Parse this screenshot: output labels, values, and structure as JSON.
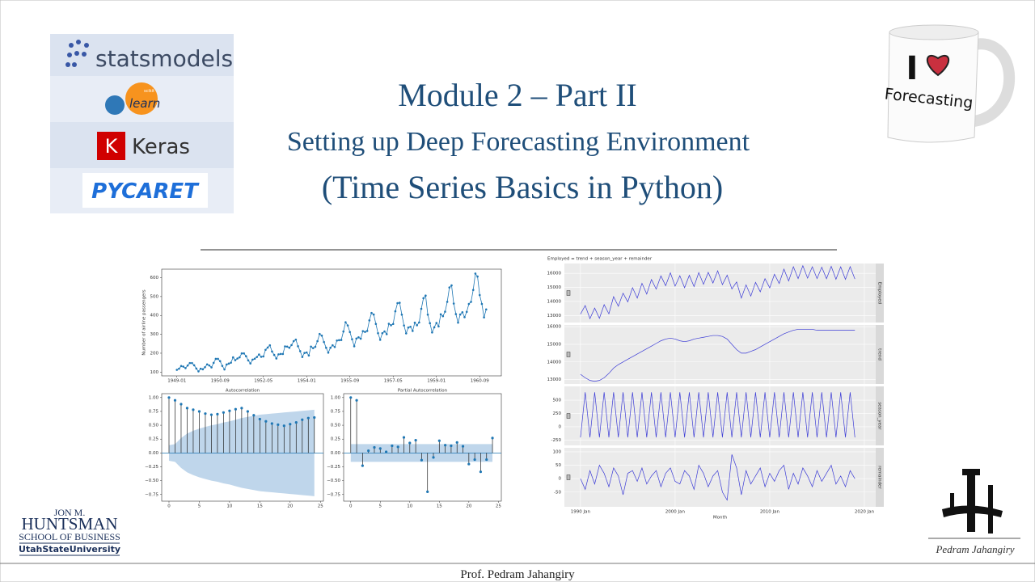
{
  "slide": {
    "title": "Module 2 – Part II",
    "subtitle": "Setting up Deep Forecasting Environment",
    "subtitle2": "(Time Series Basics in Python)",
    "logos": {
      "statsmodels": "statsmodels",
      "sklearn_small": "scikit",
      "sklearn": "learn",
      "keras_icon": "K",
      "keras": "Keras",
      "pycaret": "PYCARET"
    },
    "mug": {
      "line1": "I",
      "line2": "Forecasting"
    },
    "school": {
      "line1": "JON M.",
      "line2": "HUNTSMAN",
      "line3": "SCHOOL OF BUSINESS",
      "line4": "UtahStateUniversity"
    },
    "signature": "Pedram Jahangiry",
    "footer": "Prof. Pedram Jahangiry"
  },
  "chart_data": [
    {
      "type": "line",
      "ylabel": "Number of airline passengers",
      "color": "#1f77b4",
      "markers": true,
      "categories": [
        "1949-01",
        null,
        null,
        null,
        null,
        null,
        null,
        null,
        null,
        null,
        null,
        null,
        null,
        null,
        null,
        null,
        null,
        null,
        null,
        null,
        "1950-09",
        null,
        null,
        null,
        null,
        null,
        null,
        null,
        null,
        null,
        null,
        null,
        null,
        null,
        null,
        null,
        null,
        null,
        null,
        null,
        "1952-05",
        null,
        null,
        null,
        null,
        null,
        null,
        null,
        null,
        null,
        null,
        null,
        null,
        null,
        null,
        null,
        null,
        null,
        null,
        null,
        "1954-01",
        null,
        null,
        null,
        null,
        null,
        null,
        null,
        null,
        null,
        null,
        null,
        null,
        null,
        null,
        null,
        null,
        null,
        null,
        null,
        "1955-09",
        null,
        null,
        null,
        null,
        null,
        null,
        null,
        null,
        null,
        null,
        null,
        null,
        null,
        null,
        null,
        null,
        null,
        null,
        null,
        "1957-05",
        null,
        null,
        null,
        null,
        null,
        null,
        null,
        null,
        null,
        null,
        null,
        null,
        null,
        null,
        null,
        null,
        null,
        null,
        null,
        "1959-01",
        null,
        null,
        null,
        null,
        null,
        null,
        null,
        null,
        null,
        null,
        null,
        null,
        null,
        null,
        null,
        null,
        null,
        null,
        null,
        "1960-09",
        null,
        null,
        null
      ],
      "values": [
        112,
        118,
        132,
        129,
        121,
        135,
        148,
        148,
        136,
        119,
        104,
        118,
        115,
        126,
        141,
        135,
        125,
        149,
        170,
        170,
        158,
        133,
        114,
        140,
        145,
        150,
        178,
        163,
        172,
        178,
        199,
        199,
        184,
        162,
        146,
        166,
        171,
        180,
        193,
        181,
        183,
        218,
        230,
        242,
        209,
        191,
        172,
        194,
        196,
        196,
        236,
        235,
        229,
        243,
        264,
        272,
        237,
        211,
        180,
        201,
        204,
        188,
        235,
        227,
        234,
        264,
        302,
        293,
        259,
        229,
        203,
        229,
        242,
        233,
        267,
        269,
        270,
        315,
        364,
        347,
        312,
        274,
        237,
        278,
        284,
        277,
        317,
        313,
        318,
        374,
        413,
        405,
        355,
        306,
        271,
        306,
        315,
        301,
        356,
        348,
        355,
        422,
        465,
        467,
        404,
        347,
        305,
        336,
        340,
        318,
        362,
        348,
        363,
        435,
        491,
        505,
        404,
        359,
        310,
        337,
        360,
        342,
        406,
        396,
        420,
        472,
        548,
        559,
        463,
        407,
        362,
        405,
        417,
        391,
        419,
        461,
        472,
        535,
        622,
        606,
        508,
        461,
        390,
        432
      ],
      "ylim": [
        80,
        645
      ],
      "yticks": [
        100,
        200,
        300,
        400,
        500,
        600
      ]
    },
    {
      "type": "stem",
      "title": "Autocorrelation",
      "color": "#1f77b4",
      "band_color": "#a9c8e4",
      "x": [
        0,
        1,
        2,
        3,
        4,
        5,
        6,
        7,
        8,
        9,
        10,
        11,
        12,
        13,
        14,
        15,
        16,
        17,
        18,
        19,
        20,
        21,
        22,
        23,
        24
      ],
      "values": [
        1.0,
        0.95,
        0.88,
        0.81,
        0.78,
        0.75,
        0.71,
        0.69,
        0.7,
        0.73,
        0.76,
        0.79,
        0.81,
        0.75,
        0.68,
        0.61,
        0.57,
        0.53,
        0.51,
        0.49,
        0.52,
        0.55,
        0.6,
        0.63,
        0.64
      ],
      "band": [
        0.14,
        0.16,
        0.27,
        0.35,
        0.4,
        0.44,
        0.47,
        0.5,
        0.52,
        0.55,
        0.57,
        0.6,
        0.63,
        0.65,
        0.67,
        0.69,
        0.7,
        0.71,
        0.72,
        0.73,
        0.74,
        0.75,
        0.76,
        0.77,
        0.78
      ],
      "xlim": [
        -1.2,
        25.5
      ],
      "xticks": [
        0,
        5,
        10,
        15,
        20,
        25
      ],
      "ylim": [
        -0.87,
        1.07
      ],
      "yticks": [
        {
          "value": -0.75,
          "label": "−0.75"
        },
        {
          "value": -0.5,
          "label": "−0.50"
        },
        {
          "value": -0.25,
          "label": "−0.25"
        },
        {
          "value": 0,
          "label": "0.00"
        },
        {
          "value": 0.25,
          "label": "0.25"
        },
        {
          "value": 0.5,
          "label": "0.50"
        },
        {
          "value": 0.75,
          "label": "0.75"
        },
        {
          "value": 1,
          "label": "1.00"
        }
      ]
    },
    {
      "type": "stem",
      "title": "Partial Autocorrelation",
      "color": "#1f77b4",
      "band_color": "#a9c8e4",
      "x": [
        0,
        1,
        2,
        3,
        4,
        5,
        6,
        7,
        8,
        9,
        10,
        11,
        12,
        13,
        14,
        15,
        16,
        17,
        18,
        19,
        20,
        21,
        22,
        23,
        24
      ],
      "values": [
        1.0,
        0.95,
        -0.23,
        0.04,
        0.1,
        0.08,
        0.02,
        0.13,
        0.11,
        0.28,
        0.18,
        0.23,
        -0.13,
        -0.7,
        -0.08,
        0.22,
        0.14,
        0.13,
        0.19,
        0.12,
        -0.2,
        -0.12,
        -0.34,
        -0.12,
        0.27
      ],
      "band": [
        0.16,
        0.16,
        0.16,
        0.16,
        0.16,
        0.16,
        0.16,
        0.16,
        0.16,
        0.16,
        0.16,
        0.16,
        0.16,
        0.16,
        0.16,
        0.16,
        0.16,
        0.16,
        0.16,
        0.16,
        0.16,
        0.16,
        0.16,
        0.16,
        0.16
      ],
      "xlim": [
        -1.2,
        25.5
      ],
      "xticks": [
        0,
        5,
        10,
        15,
        20,
        25
      ],
      "ylim": [
        -0.87,
        1.07
      ],
      "yticks": [
        {
          "value": -0.75,
          "label": "−0.75"
        },
        {
          "value": -0.5,
          "label": "−0.50"
        },
        {
          "value": -0.25,
          "label": "−0.25"
        },
        {
          "value": 0,
          "label": "0.00"
        },
        {
          "value": 0.25,
          "label": "0.25"
        },
        {
          "value": 0.5,
          "label": "0.50"
        },
        {
          "value": 0.75,
          "label": "0.75"
        },
        {
          "value": 1,
          "label": "1.00"
        }
      ]
    },
    {
      "type": "decomposition",
      "title": "Employed = trend + season_year + remainder",
      "xlabel": "Month",
      "color": "#3b3bd6",
      "x": [
        1990,
        1990.5,
        1991,
        1991.5,
        1992,
        1992.5,
        1993,
        1993.5,
        1994,
        1994.5,
        1995,
        1995.5,
        1996,
        1996.5,
        1997,
        1997.5,
        1998,
        1998.5,
        1999,
        1999.5,
        2000,
        2000.5,
        2001,
        2001.5,
        2002,
        2002.5,
        2003,
        2003.5,
        2004,
        2004.5,
        2005,
        2005.5,
        2006,
        2006.5,
        2007,
        2007.5,
        2008,
        2008.5,
        2009,
        2009.5,
        2010,
        2010.5,
        2011,
        2011.5,
        2012,
        2012.5,
        2013,
        2013.5,
        2014,
        2014.5,
        2015,
        2015.5,
        2016,
        2016.5,
        2017,
        2017.5,
        2018,
        2018.5,
        2019
      ],
      "xlim": [
        1988.3,
        2021.2
      ],
      "xticks": [
        {
          "value": 1990,
          "label": "1990 Jan"
        },
        {
          "value": 2000,
          "label": "2000 Jan"
        },
        {
          "value": 2010,
          "label": "2010 Jan"
        },
        {
          "value": 2020,
          "label": "2020 Jan"
        }
      ],
      "panels": [
        {
          "name": "Employed",
          "ylim": [
            12500,
            16700
          ],
          "yticks": [
            13000,
            14000,
            15000,
            16000
          ],
          "values": [
            13100,
            13710,
            12780,
            13530,
            12800,
            13770,
            13120,
            14340,
            13660,
            14590,
            13970,
            14980,
            14240,
            15290,
            14530,
            15560,
            14880,
            15820,
            15120,
            16040,
            15090,
            15830,
            14980,
            15860,
            15060,
            16050,
            15220,
            16070,
            15310,
            16180,
            15200,
            15870,
            14890,
            15390,
            14240,
            15180,
            14380,
            15360,
            14690,
            15620,
            14970,
            15940,
            15280,
            16300,
            15460,
            16470,
            15630,
            16540,
            15660,
            16470,
            15630,
            16440,
            15620,
            16500,
            15580,
            16460,
            15570,
            16480,
            15600
          ]
        },
        {
          "name": "trend",
          "ylim": [
            12750,
            16100
          ],
          "yticks": [
            13000,
            14000,
            15000,
            16000
          ],
          "values": [
            13300,
            13100,
            12950,
            12900,
            12950,
            13100,
            13350,
            13650,
            13850,
            14000,
            14150,
            14300,
            14450,
            14600,
            14750,
            14900,
            15050,
            15200,
            15300,
            15350,
            15300,
            15200,
            15150,
            15200,
            15300,
            15350,
            15400,
            15450,
            15500,
            15500,
            15450,
            15300,
            15000,
            14700,
            14500,
            14500,
            14600,
            14700,
            14850,
            15000,
            15150,
            15300,
            15450,
            15600,
            15700,
            15800,
            15850,
            15850,
            15850,
            15850,
            15800,
            15800,
            15800,
            15800,
            15800,
            15800,
            15800,
            15800,
            15800
          ]
        },
        {
          "name": "season_year",
          "ylim": [
            -350,
            760
          ],
          "yticks": [
            -250,
            0,
            250,
            500
          ],
          "values": [
            -200,
            650,
            -200,
            650,
            -200,
            650,
            -200,
            650,
            -200,
            650,
            -200,
            650,
            -200,
            650,
            -200,
            650,
            -200,
            650,
            -200,
            650,
            -200,
            650,
            -200,
            650,
            -200,
            650,
            -200,
            650,
            -200,
            650,
            -200,
            650,
            -200,
            650,
            -200,
            650,
            -200,
            650,
            -200,
            650,
            -200,
            650,
            -200,
            650,
            -200,
            650,
            -200,
            650,
            -200,
            650,
            -200,
            650,
            -200,
            650,
            -200,
            650,
            -200,
            650,
            -200
          ]
        },
        {
          "name": "remainder",
          "ylim": [
            -105,
            115
          ],
          "yticks": [
            -50,
            0,
            50,
            100
          ],
          "values": [
            0,
            -40,
            30,
            -20,
            50,
            20,
            -30,
            40,
            10,
            -60,
            20,
            30,
            -10,
            40,
            -20,
            10,
            30,
            -30,
            20,
            40,
            -10,
            -20,
            30,
            10,
            -40,
            50,
            20,
            -30,
            10,
            30,
            -50,
            -80,
            90,
            40,
            -60,
            30,
            -20,
            10,
            40,
            -30,
            20,
            -10,
            30,
            50,
            -40,
            20,
            -20,
            40,
            10,
            -30,
            30,
            -10,
            20,
            50,
            -20,
            10,
            -30,
            30,
            0
          ]
        }
      ]
    }
  ]
}
